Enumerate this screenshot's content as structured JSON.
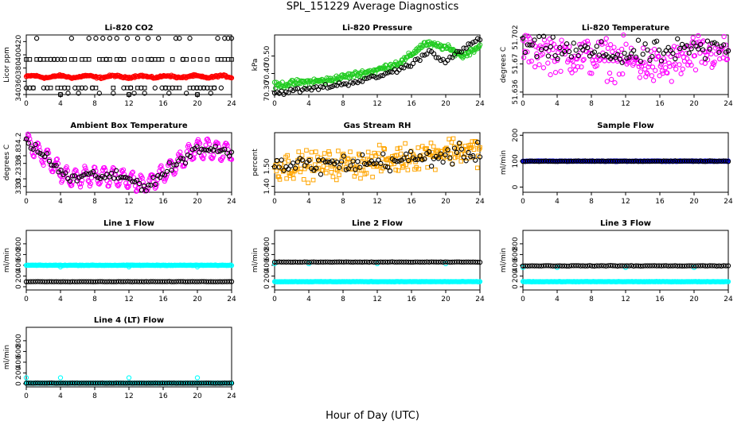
{
  "title": "SPL_151229  Average Diagnostics",
  "x_axis_title": "Hour of Day (UTC)",
  "colors": {
    "black": "#000000",
    "red": "#ff0000",
    "green": "#22cc22",
    "magenta": "#ff00ff",
    "orange": "#ffa500",
    "blue": "#0000ff",
    "cyan": "#00ffff"
  },
  "chart_data": [
    {
      "id": "co2",
      "type": "scatter",
      "title": "Li-820 CO2",
      "ylabel": "Licor ppm",
      "xlim": [
        0,
        24
      ],
      "xticks": [
        0,
        4,
        8,
        12,
        16,
        20,
        24
      ],
      "ylim": [
        340,
        430
      ],
      "yticks": [
        "340",
        "360",
        "380",
        "400",
        "420"
      ],
      "series": [
        {
          "color": "red",
          "shape": "circle",
          "pattern": "flat",
          "base": 367,
          "amp": 1.5,
          "noise": 1.2
        },
        {
          "color": "black",
          "shape": "circle",
          "pattern": "levels",
          "levels": [
            425,
            393,
            350,
            342
          ],
          "markers": [
            4,
            12,
            20
          ]
        },
        {
          "color": "black",
          "shape": "square",
          "pattern": "levels",
          "levels": [
            393,
            350
          ],
          "markers": [
            4,
            12,
            20
          ]
        }
      ]
    },
    {
      "id": "pressure",
      "type": "scatter",
      "title": "Li-820 Pressure",
      "ylabel": "kPa",
      "xlim": [
        0,
        24
      ],
      "xticks": [
        0,
        4,
        8,
        12,
        16,
        20,
        24
      ],
      "ylim": [
        70.28,
        70.62
      ],
      "yticks": [
        "70.30",
        "70.40",
        "70.50"
      ],
      "series": [
        {
          "color": "green",
          "shape": "circle",
          "pattern": "curve",
          "points": [
            [
              0,
              70.33
            ],
            [
              3,
              70.35
            ],
            [
              6,
              70.36
            ],
            [
              9,
              70.39
            ],
            [
              12,
              70.42
            ],
            [
              15,
              70.47
            ],
            [
              17.5,
              70.57
            ],
            [
              20,
              70.55
            ],
            [
              22,
              70.5
            ],
            [
              24,
              70.56
            ]
          ],
          "noise": 0.015
        },
        {
          "color": "black",
          "shape": "circle",
          "pattern": "curve",
          "points": [
            [
              0,
              70.29
            ],
            [
              4,
              70.31
            ],
            [
              8,
              70.34
            ],
            [
              12,
              70.38
            ],
            [
              16,
              70.45
            ],
            [
              18,
              70.53
            ],
            [
              20,
              70.47
            ],
            [
              24,
              70.6
            ]
          ],
          "noise": 0.012
        }
      ]
    },
    {
      "id": "li820temp",
      "type": "scatter",
      "title": "Li-820 Temperature",
      "ylabel": "degrees C",
      "xlim": [
        0,
        24
      ],
      "xticks": [
        0,
        4,
        8,
        12,
        16,
        20,
        24
      ],
      "ylim": [
        51.633,
        51.705
      ],
      "yticks": [
        "51.636",
        "51.67",
        "51.702"
      ],
      "series": [
        {
          "color": "magenta",
          "shape": "circle",
          "pattern": "curve",
          "points": [
            [
              0,
              51.69
            ],
            [
              6,
              51.68
            ],
            [
              12,
              51.675
            ],
            [
              16,
              51.665
            ],
            [
              20,
              51.68
            ],
            [
              24,
              51.685
            ]
          ],
          "noise": 0.02
        },
        {
          "color": "black",
          "shape": "circle",
          "pattern": "curve",
          "points": [
            [
              0,
              51.69
            ],
            [
              12,
              51.68
            ],
            [
              24,
              51.69
            ]
          ],
          "noise": 0.012
        }
      ]
    },
    {
      "id": "ambient",
      "type": "scatter",
      "title": "Ambient Box Temperature",
      "ylabel": "degrees C",
      "xlim": [
        0,
        24
      ],
      "xticks": [
        0,
        4,
        8,
        12,
        16,
        20,
        24
      ],
      "ylim": [
        32.85,
        34.4
      ],
      "yticks": [
        "33.0",
        "33.2",
        "33.6",
        "33.8",
        "34.2"
      ],
      "series": [
        {
          "color": "magenta",
          "shape": "circle",
          "pattern": "wave",
          "points": [
            [
              0,
              34.2
            ],
            [
              3,
              33.6
            ],
            [
              5,
              33.2
            ],
            [
              8,
              33.3
            ],
            [
              12,
              33.2
            ],
            [
              14,
              33.0
            ],
            [
              17,
              33.5
            ],
            [
              20,
              34.0
            ],
            [
              24,
              33.9
            ]
          ],
          "amp": 0.22,
          "period": 1.1,
          "noise": 0.05
        },
        {
          "color": "black",
          "shape": "circle",
          "pattern": "curve",
          "points": [
            [
              0,
              34.2
            ],
            [
              3,
              33.6
            ],
            [
              5,
              33.2
            ],
            [
              8,
              33.3
            ],
            [
              12,
              33.2
            ],
            [
              14,
              33.0
            ],
            [
              17,
              33.5
            ],
            [
              20,
              34.0
            ],
            [
              24,
              33.9
            ]
          ],
          "noise": 0.12
        }
      ]
    },
    {
      "id": "rh",
      "type": "scatter",
      "title": "Gas Stream RH",
      "ylabel": "percent",
      "xlim": [
        0,
        24
      ],
      "xticks": [
        0,
        4,
        8,
        12,
        16,
        20,
        24
      ],
      "ylim": [
        1.37,
        1.67
      ],
      "yticks": [
        "1.40",
        "1.50"
      ],
      "series": [
        {
          "color": "orange",
          "shape": "square",
          "pattern": "curve",
          "points": [
            [
              0,
              1.5
            ],
            [
              8,
              1.51
            ],
            [
              12,
              1.52
            ],
            [
              16,
              1.55
            ],
            [
              20,
              1.58
            ],
            [
              24,
              1.58
            ]
          ],
          "noise": 0.06
        },
        {
          "color": "black",
          "shape": "circle",
          "pattern": "curve",
          "points": [
            [
              0,
              1.5
            ],
            [
              12,
              1.52
            ],
            [
              24,
              1.57
            ]
          ],
          "noise": 0.04
        }
      ]
    },
    {
      "id": "sampleflow",
      "type": "scatter",
      "title": "Sample Flow",
      "ylabel": "ml/min",
      "xlim": [
        0,
        24
      ],
      "xticks": [
        0,
        4,
        8,
        12,
        16,
        20,
        24
      ],
      "ylim": [
        -20,
        210
      ],
      "yticks": [
        "0",
        "100",
        "200"
      ],
      "series": [
        {
          "color": "blue",
          "shape": "circle",
          "pattern": "flat",
          "base": 100,
          "amp": 0,
          "noise": 1
        },
        {
          "color": "black",
          "shape": "circle",
          "pattern": "flat",
          "base": 100,
          "amp": 0,
          "noise": 1
        }
      ]
    },
    {
      "id": "line1",
      "type": "scatter",
      "title": "Line 1 Flow",
      "ylabel": "ml/min",
      "xlim": [
        0,
        24
      ],
      "xticks": [
        0,
        4,
        8,
        12,
        16,
        20,
        24
      ],
      "ylim": [
        -60,
        1050
      ],
      "yticks": [
        "0",
        "200",
        "400",
        "600",
        "800"
      ],
      "series": [
        {
          "color": "cyan",
          "shape": "circle",
          "pattern": "flat",
          "base": 400,
          "amp": 0,
          "noise": 4,
          "markers": [
            4,
            12,
            20
          ],
          "markerValue": 370
        },
        {
          "color": "black",
          "shape": "circle",
          "pattern": "flat",
          "base": 95,
          "amp": 0,
          "noise": 2
        }
      ]
    },
    {
      "id": "line2",
      "type": "scatter",
      "title": "Line 2 Flow",
      "ylabel": "ml/min",
      "xlim": [
        0,
        24
      ],
      "xticks": [
        0,
        4,
        8,
        12,
        16,
        20,
        24
      ],
      "ylim": [
        -60,
        1050
      ],
      "yticks": [
        "0",
        "200",
        "400",
        "600",
        "800"
      ],
      "series": [
        {
          "color": "cyan",
          "shape": "circle",
          "pattern": "flat",
          "base": 95,
          "amp": 0,
          "noise": 3,
          "markers": [
            0,
            4,
            12,
            20
          ],
          "markerValue": 430
        },
        {
          "color": "black",
          "shape": "circle",
          "pattern": "flat",
          "base": 460,
          "amp": 0,
          "noise": 3
        }
      ]
    },
    {
      "id": "line3",
      "type": "scatter",
      "title": "Line 3 Flow",
      "ylabel": "ml/min",
      "xlim": [
        0,
        24
      ],
      "xticks": [
        0,
        4,
        8,
        12,
        16,
        20,
        24
      ],
      "ylim": [
        -60,
        1050
      ],
      "yticks": [
        "0",
        "200",
        "400",
        "600",
        "800"
      ],
      "series": [
        {
          "color": "cyan",
          "shape": "circle",
          "pattern": "flat",
          "base": 95,
          "amp": 0,
          "noise": 3,
          "markers": [
            0,
            4,
            12,
            20
          ],
          "markerValue": 360
        },
        {
          "color": "black",
          "shape": "circle",
          "pattern": "flat",
          "base": 390,
          "amp": 0,
          "noise": 4
        }
      ]
    },
    {
      "id": "line4",
      "type": "scatter",
      "title": "Line 4 (LT) Flow",
      "ylabel": "ml/min",
      "xlim": [
        0,
        24
      ],
      "xticks": [
        0,
        4,
        8,
        12,
        16,
        20,
        24
      ],
      "ylim": [
        -60,
        1050
      ],
      "yticks": [
        "0",
        "200",
        "400",
        "600",
        "800"
      ],
      "series": [
        {
          "color": "cyan",
          "shape": "circle",
          "pattern": "flat",
          "base": 10,
          "amp": 0,
          "noise": 2,
          "markers": [
            0,
            4,
            12,
            20
          ],
          "markerValue": 110
        },
        {
          "color": "black",
          "shape": "circle",
          "pattern": "flat",
          "base": 10,
          "amp": 0,
          "noise": 2
        }
      ]
    }
  ]
}
